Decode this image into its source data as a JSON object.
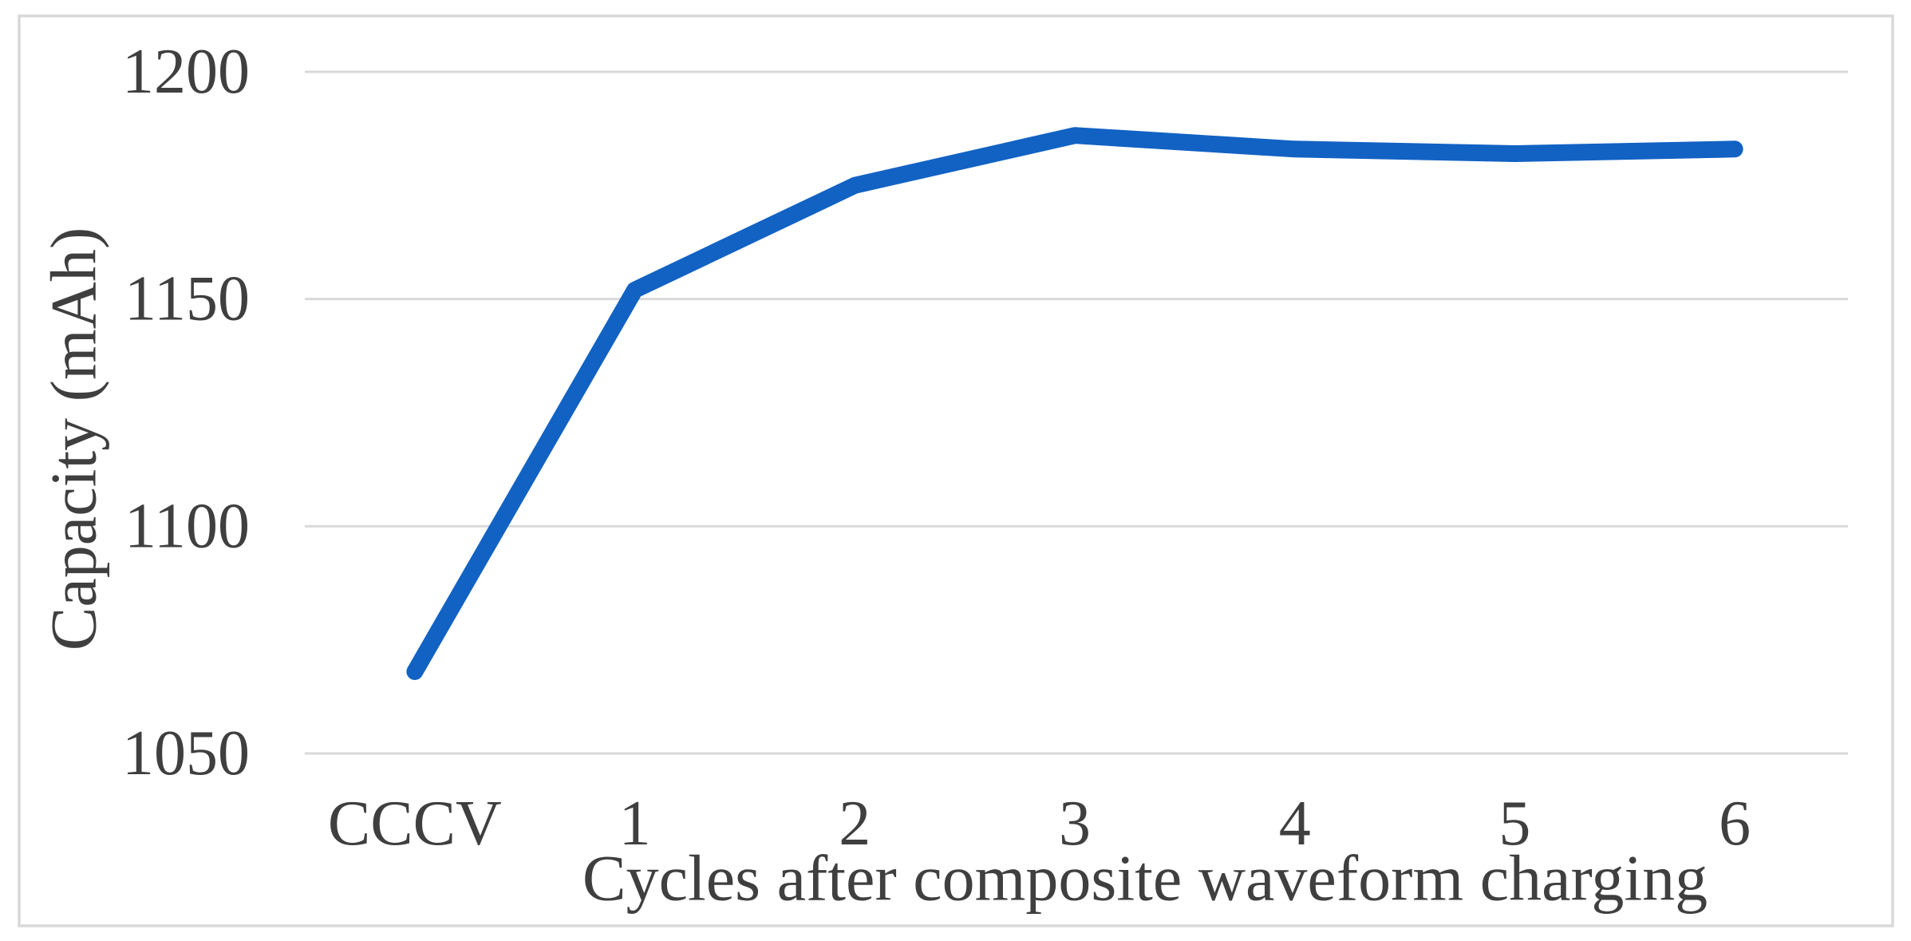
{
  "chart_data": {
    "type": "line",
    "categories": [
      "CCCV",
      "1",
      "2",
      "3",
      "4",
      "5",
      "6"
    ],
    "values": [
      1068,
      1152,
      1175,
      1186,
      1183,
      1182,
      1183
    ],
    "xlabel": "Cycles after composite waveform charging",
    "ylabel": "Capacity (mAh)",
    "ylim": [
      1050,
      1200
    ],
    "yticks": [
      1050,
      1100,
      1150,
      1200
    ],
    "grid": "horizontal",
    "legend": "none",
    "line_color": "#1262C4",
    "gridline_color": "#d9d9d9",
    "border_color": "#d9d9d9",
    "axis_text_color": "#3f3f3f",
    "background": "#ffffff"
  }
}
